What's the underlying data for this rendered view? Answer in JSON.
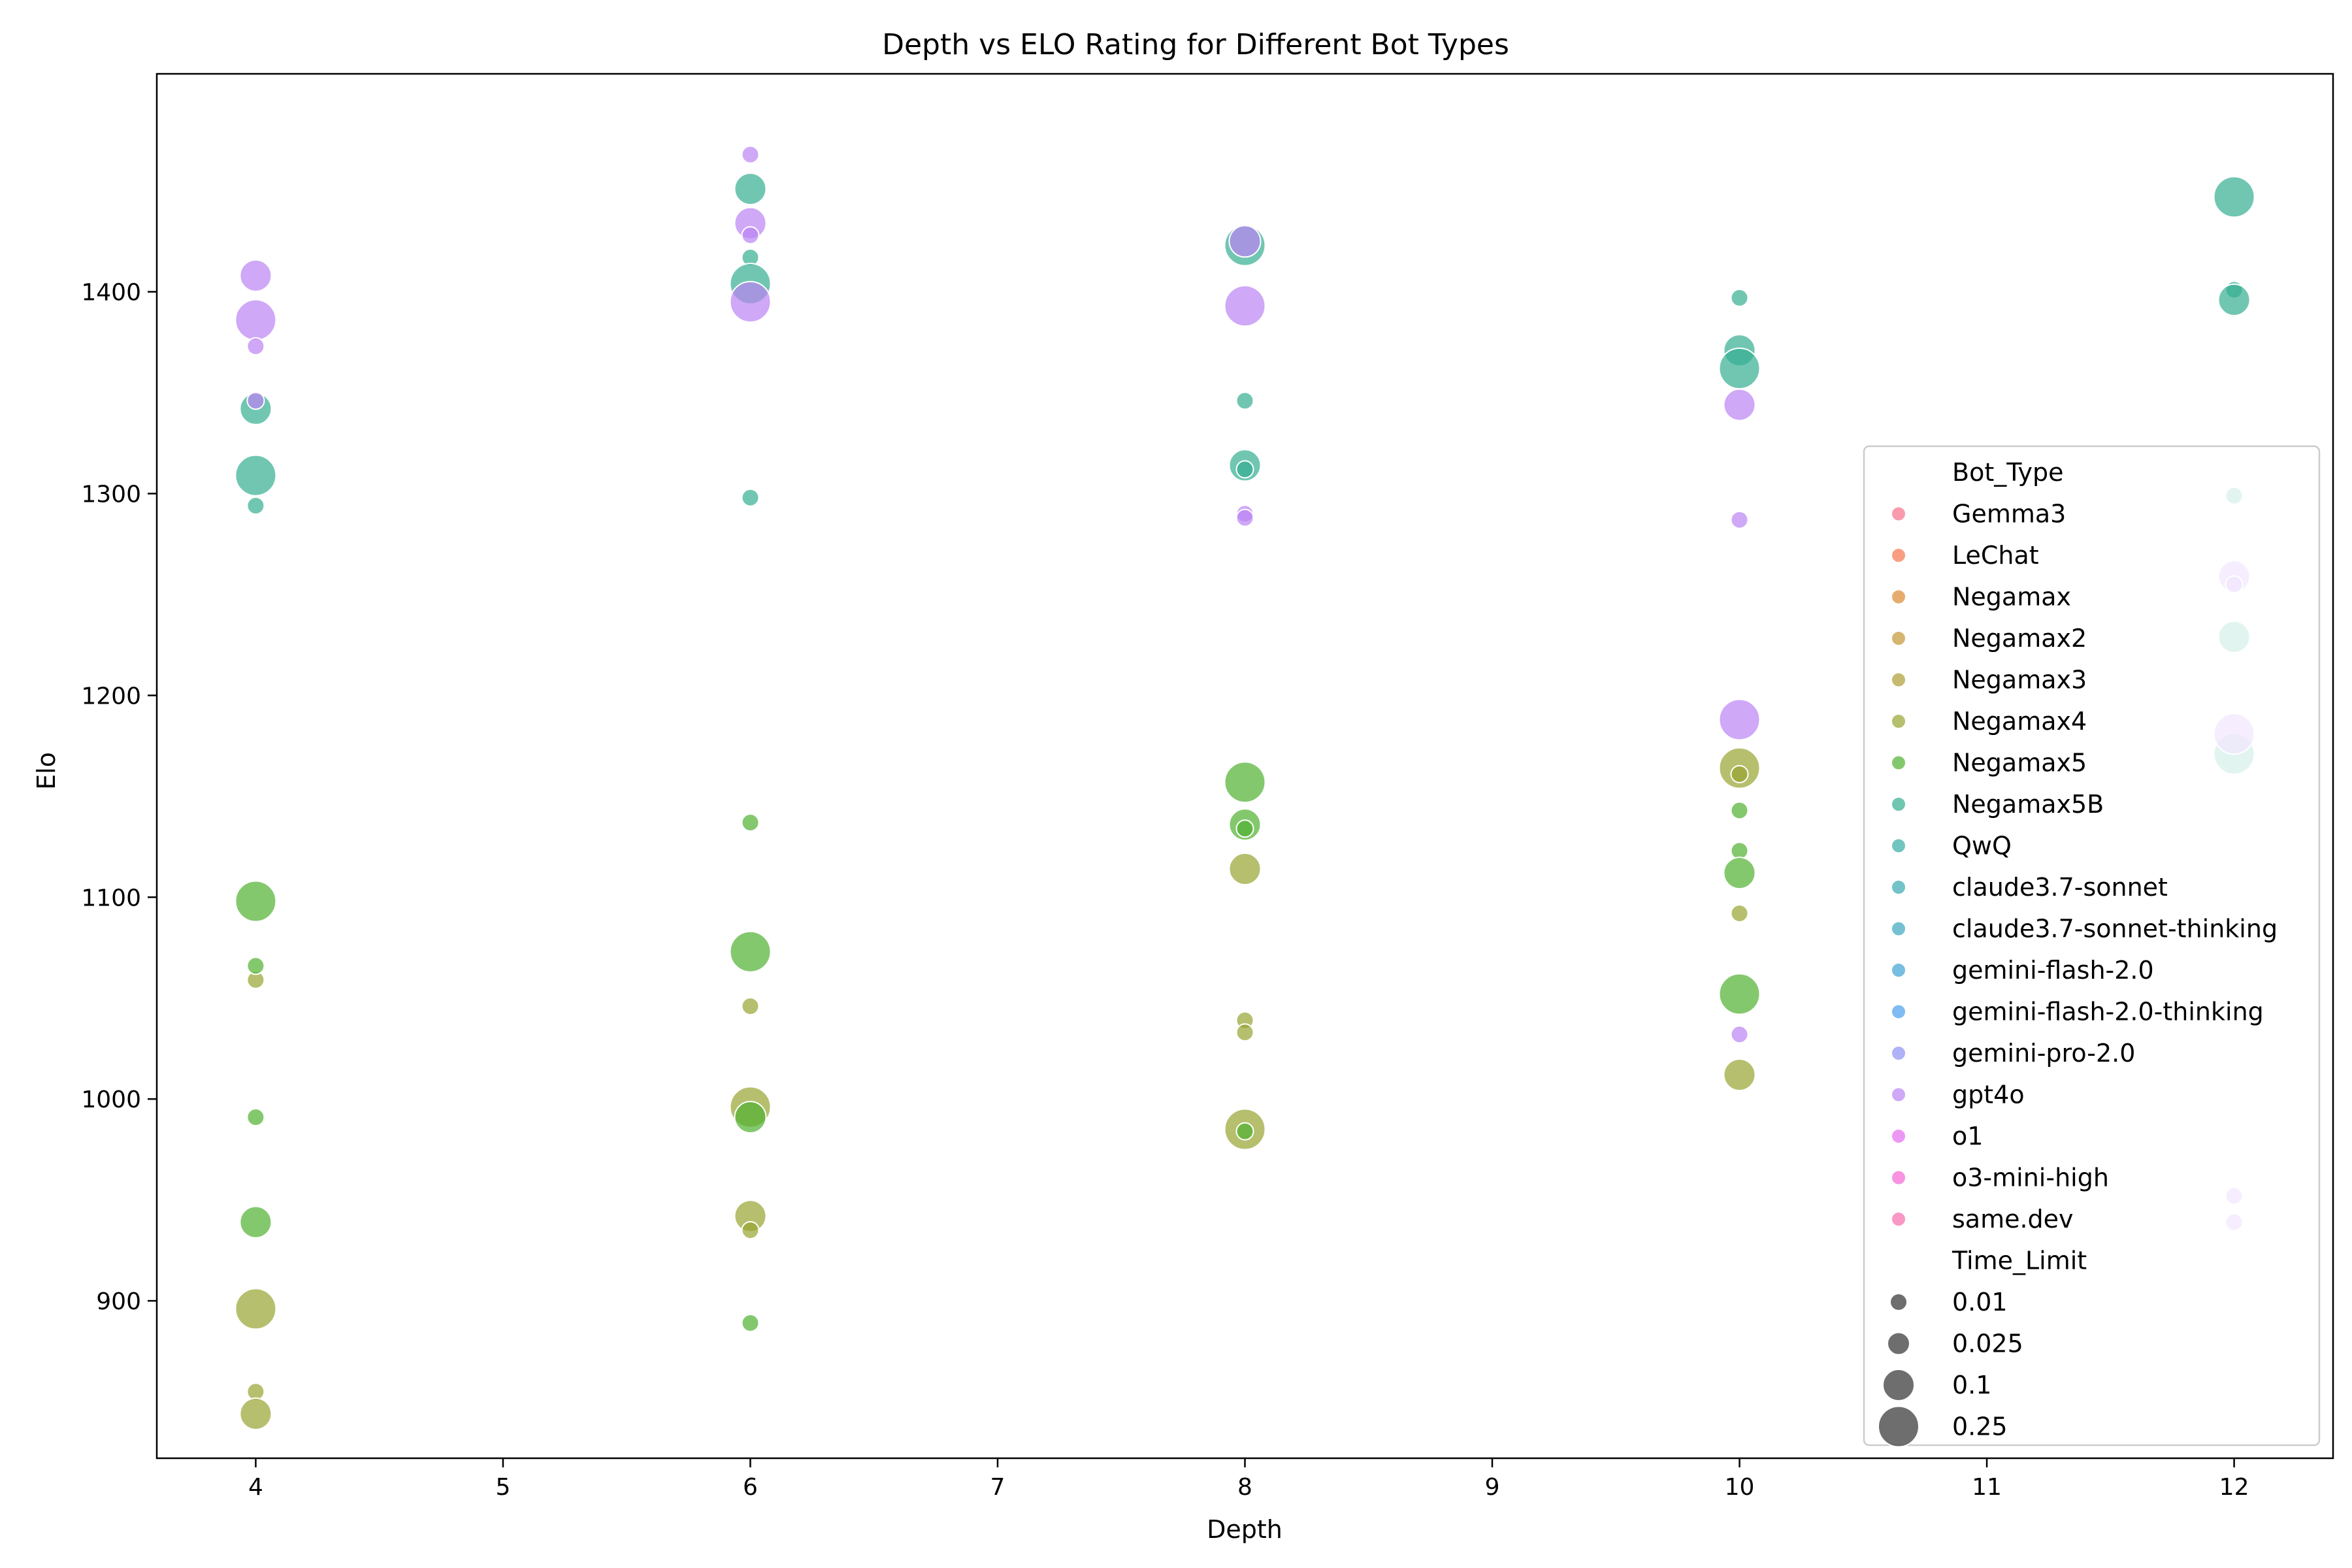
{
  "chart_data": {
    "type": "scatter",
    "title": "Depth vs ELO Rating for Different Bot Types",
    "xlabel": "Depth",
    "ylabel": "Elo",
    "xlim": [
      3.6,
      12.4
    ],
    "ylim": [
      822,
      1508
    ],
    "xticks": [
      4,
      5,
      6,
      7,
      8,
      9,
      10,
      11,
      12
    ],
    "yticks": [
      900,
      1000,
      1100,
      1200,
      1300,
      1400
    ],
    "grid": false,
    "legend_placement": "lower right",
    "legend": {
      "hue_title": "Bot_Type",
      "size_title": "Time_Limit",
      "size_entries": [
        "0.01",
        "0.025",
        "0.1",
        "0.25"
      ]
    },
    "series": [
      {
        "name": "Gemma3",
        "color": "#f77189",
        "points": []
      },
      {
        "name": "LeChat",
        "color": "#f7754f",
        "points": []
      },
      {
        "name": "Negamax",
        "color": "#dc8932",
        "points": []
      },
      {
        "name": "Negamax2",
        "color": "#c39532",
        "points": []
      },
      {
        "name": "Negamax3",
        "color": "#ae9d31",
        "points": []
      },
      {
        "name": "Negamax4",
        "color": "#97a431",
        "points": [
          {
            "x": 4,
            "y": 1059,
            "t": "0.01"
          },
          {
            "x": 4,
            "y": 896,
            "t": "0.25"
          },
          {
            "x": 4,
            "y": 855,
            "t": "0.01"
          },
          {
            "x": 4,
            "y": 844,
            "t": "0.1"
          },
          {
            "x": 6,
            "y": 1046,
            "t": "0.01"
          },
          {
            "x": 6,
            "y": 996,
            "t": "0.25"
          },
          {
            "x": 6,
            "y": 942,
            "t": "0.1"
          },
          {
            "x": 6,
            "y": 935,
            "t": "0.01"
          },
          {
            "x": 8,
            "y": 1114,
            "t": "0.1"
          },
          {
            "x": 8,
            "y": 1039,
            "t": "0.01"
          },
          {
            "x": 8,
            "y": 1033,
            "t": "0.01"
          },
          {
            "x": 8,
            "y": 985,
            "t": "0.25"
          },
          {
            "x": 10,
            "y": 1164,
            "t": "0.25"
          },
          {
            "x": 10,
            "y": 1161,
            "t": "0.01"
          },
          {
            "x": 10,
            "y": 1092,
            "t": "0.01"
          },
          {
            "x": 10,
            "y": 1012,
            "t": "0.1"
          }
        ]
      },
      {
        "name": "Negamax5",
        "color": "#50b131",
        "points": [
          {
            "x": 4,
            "y": 1098,
            "t": "0.25"
          },
          {
            "x": 4,
            "y": 1066,
            "t": "0.01"
          },
          {
            "x": 4,
            "y": 991,
            "t": "0.01"
          },
          {
            "x": 4,
            "y": 939,
            "t": "0.1"
          },
          {
            "x": 6,
            "y": 1137,
            "t": "0.01"
          },
          {
            "x": 6,
            "y": 1073,
            "t": "0.25"
          },
          {
            "x": 6,
            "y": 991,
            "t": "0.1"
          },
          {
            "x": 6,
            "y": 889,
            "t": "0.01"
          },
          {
            "x": 8,
            "y": 1157,
            "t": "0.25"
          },
          {
            "x": 8,
            "y": 1136,
            "t": "0.1"
          },
          {
            "x": 8,
            "y": 1134,
            "t": "0.01"
          },
          {
            "x": 8,
            "y": 984,
            "t": "0.01"
          },
          {
            "x": 10,
            "y": 1143,
            "t": "0.01"
          },
          {
            "x": 10,
            "y": 1123,
            "t": "0.01"
          },
          {
            "x": 10,
            "y": 1112,
            "t": "0.1"
          },
          {
            "x": 10,
            "y": 1052,
            "t": "0.25"
          }
        ]
      },
      {
        "name": "Negamax5B",
        "color": "#34ae91",
        "points": [
          {
            "x": 4,
            "y": 1342,
            "t": "0.1"
          },
          {
            "x": 4,
            "y": 1309,
            "t": "0.25"
          },
          {
            "x": 4,
            "y": 1294,
            "t": "0.01"
          },
          {
            "x": 6,
            "y": 1451,
            "t": "0.1"
          },
          {
            "x": 6,
            "y": 1417,
            "t": "0.01"
          },
          {
            "x": 6,
            "y": 1404,
            "t": "0.25"
          },
          {
            "x": 6,
            "y": 1298,
            "t": "0.01"
          },
          {
            "x": 8,
            "y": 1423,
            "t": "0.25"
          },
          {
            "x": 8,
            "y": 1346,
            "t": "0.01"
          },
          {
            "x": 8,
            "y": 1314,
            "t": "0.1"
          },
          {
            "x": 8,
            "y": 1312,
            "t": "0.01"
          },
          {
            "x": 10,
            "y": 1397,
            "t": "0.01"
          },
          {
            "x": 10,
            "y": 1371,
            "t": "0.1"
          },
          {
            "x": 10,
            "y": 1362,
            "t": "0.25"
          },
          {
            "x": 12,
            "y": 1447,
            "t": "0.25"
          },
          {
            "x": 12,
            "y": 1401,
            "t": "0.01"
          },
          {
            "x": 12,
            "y": 1396,
            "t": "0.1"
          },
          {
            "x": 12,
            "y": 1299,
            "t": "0.01"
          },
          {
            "x": 12,
            "y": 1229,
            "t": "0.1"
          },
          {
            "x": 12,
            "y": 1171,
            "t": "0.25"
          }
        ]
      },
      {
        "name": "QwQ",
        "color": "#36ada4",
        "points": []
      },
      {
        "name": "claude3.7-sonnet",
        "color": "#38aab0",
        "points": []
      },
      {
        "name": "claude3.7-sonnet-thinking",
        "color": "#3ba7bf",
        "points": []
      },
      {
        "name": "gemini-flash-2.0",
        "color": "#3ea2d3",
        "points": []
      },
      {
        "name": "gemini-flash-2.0-thinking",
        "color": "#4a9ef0",
        "points": []
      },
      {
        "name": "gemini-pro-2.0",
        "color": "#8e92f4",
        "points": []
      },
      {
        "name": "gpt4o",
        "color": "#bb83f4",
        "points": [
          {
            "x": 4,
            "y": 1408,
            "t": "0.1"
          },
          {
            "x": 4,
            "y": 1386,
            "t": "0.25"
          },
          {
            "x": 4,
            "y": 1373,
            "t": "0.01"
          },
          {
            "x": 4,
            "y": 1346,
            "t": "0.01"
          },
          {
            "x": 6,
            "y": 1468,
            "t": "0.01"
          },
          {
            "x": 6,
            "y": 1434,
            "t": "0.1"
          },
          {
            "x": 6,
            "y": 1428,
            "t": "0.01"
          },
          {
            "x": 6,
            "y": 1395,
            "t": "0.25"
          },
          {
            "x": 8,
            "y": 1425,
            "t": "0.1"
          },
          {
            "x": 8,
            "y": 1393,
            "t": "0.25"
          },
          {
            "x": 8,
            "y": 1290,
            "t": "0.01"
          },
          {
            "x": 8,
            "y": 1288,
            "t": "0.01"
          },
          {
            "x": 10,
            "y": 1344,
            "t": "0.1"
          },
          {
            "x": 10,
            "y": 1287,
            "t": "0.01"
          },
          {
            "x": 10,
            "y": 1188,
            "t": "0.25"
          },
          {
            "x": 10,
            "y": 1032,
            "t": "0.01"
          },
          {
            "x": 12,
            "y": 1259,
            "t": "0.1"
          },
          {
            "x": 12,
            "y": 1255,
            "t": "0.01"
          },
          {
            "x": 12,
            "y": 1181,
            "t": "0.25"
          },
          {
            "x": 12,
            "y": 952,
            "t": "0.01"
          },
          {
            "x": 12,
            "y": 939,
            "t": "0.01"
          }
        ]
      },
      {
        "name": "o1",
        "color": "#e56bf0",
        "points": []
      },
      {
        "name": "o3-mini-high",
        "color": "#f564d4",
        "points": []
      },
      {
        "name": "same.dev",
        "color": "#f66bad",
        "points": []
      }
    ]
  }
}
